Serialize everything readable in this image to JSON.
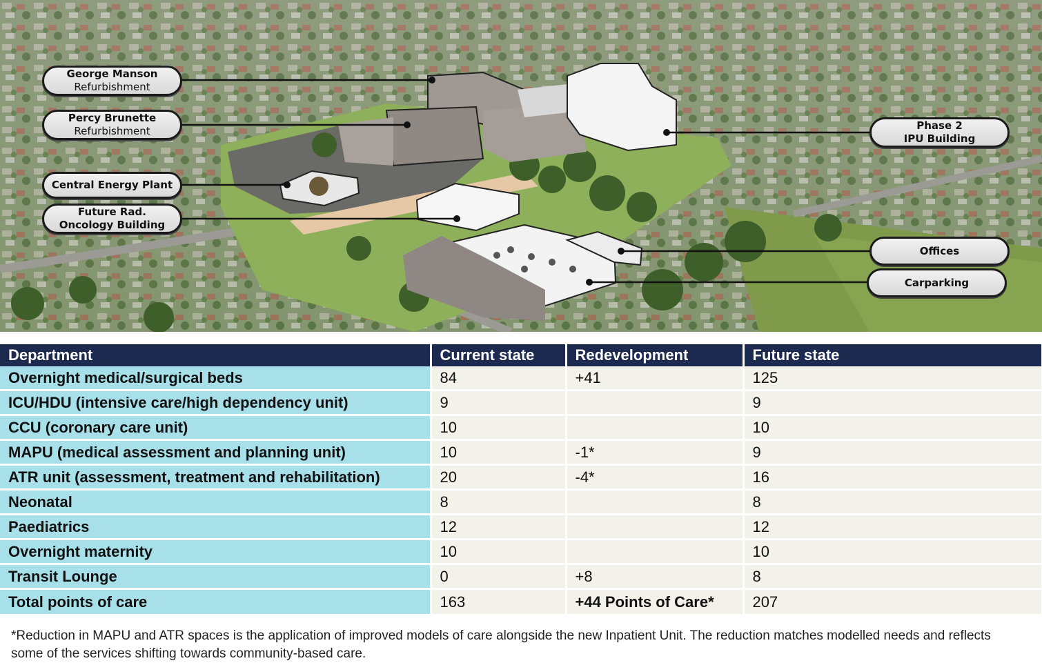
{
  "callouts": {
    "george_manson": {
      "line1": "George Manson",
      "line2": "Refurbishment"
    },
    "percy_brunette": {
      "line1": "Percy Brunette",
      "line2": "Refurbishment"
    },
    "central_energy": {
      "line1": "Central Energy Plant"
    },
    "future_rad": {
      "line1": "Future Rad.",
      "line2": "Oncology Building"
    },
    "phase2": {
      "line1": "Phase 2",
      "line2": "IPU Building"
    },
    "offices": {
      "line1": "Offices"
    },
    "carparking": {
      "line1": "Carparking"
    }
  },
  "table": {
    "headers": [
      "Department",
      "Current state",
      "Redevelopment",
      "Future state"
    ],
    "rows": [
      {
        "dept": "Overnight medical/surgical beds",
        "current": "84",
        "redev": "+41",
        "future": "125"
      },
      {
        "dept": "ICU/HDU (intensive care/high dependency unit)",
        "current": "9",
        "redev": "",
        "future": "9"
      },
      {
        "dept": "CCU (coronary care unit)",
        "current": "10",
        "redev": "",
        "future": "10"
      },
      {
        "dept": "MAPU (medical assessment and planning unit)",
        "current": "10",
        "redev": "-1*",
        "future": "9"
      },
      {
        "dept": "ATR unit (assessment, treatment and rehabilitation)",
        "current": "20",
        "redev": "-4*",
        "future": "16"
      },
      {
        "dept": "Neonatal",
        "current": "8",
        "redev": "",
        "future": "8"
      },
      {
        "dept": "Paediatrics",
        "current": "12",
        "redev": "",
        "future": "12"
      },
      {
        "dept": "Overnight maternity",
        "current": "10",
        "redev": "",
        "future": "10"
      },
      {
        "dept": "Transit Lounge",
        "current": "0",
        "redev": "+8",
        "future": "8"
      },
      {
        "dept": "Total points of care",
        "current": "163",
        "redev": "+44 Points of Care*",
        "future": "207"
      }
    ]
  },
  "footnote": "*Reduction in MAPU and ATR spaces is the application of improved models of care alongside the new Inpatient Unit.  The reduction matches modelled needs and reflects some of the services shifting towards community-based care."
}
